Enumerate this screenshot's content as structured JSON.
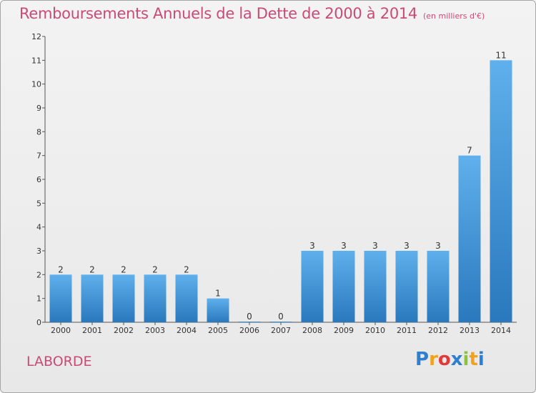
{
  "chart_data": {
    "type": "bar",
    "title": "Remboursements Annuels de la Dette de 2000 à 2014",
    "unit_note": "(en milliers d'€)",
    "categories": [
      "2000",
      "2001",
      "2002",
      "2003",
      "2004",
      "2005",
      "2006",
      "2007",
      "2008",
      "2009",
      "2010",
      "2011",
      "2012",
      "2013",
      "2014"
    ],
    "values": [
      2,
      2,
      2,
      2,
      2,
      1,
      0,
      0,
      3,
      3,
      3,
      3,
      3,
      7,
      11
    ],
    "ylim": [
      0,
      12
    ],
    "yticks": [
      0,
      1,
      2,
      3,
      4,
      5,
      6,
      7,
      8,
      9,
      10,
      11,
      12
    ],
    "grid": false,
    "xlabel": "",
    "ylabel": "",
    "bar_color": "#3a8fd6"
  },
  "footer": {
    "commune": "LABORDE",
    "logo": "Proxiti"
  },
  "colors": {
    "title": "#c94a77",
    "bar_top": "#5fb0ec",
    "bar_bottom": "#2a78bd"
  }
}
